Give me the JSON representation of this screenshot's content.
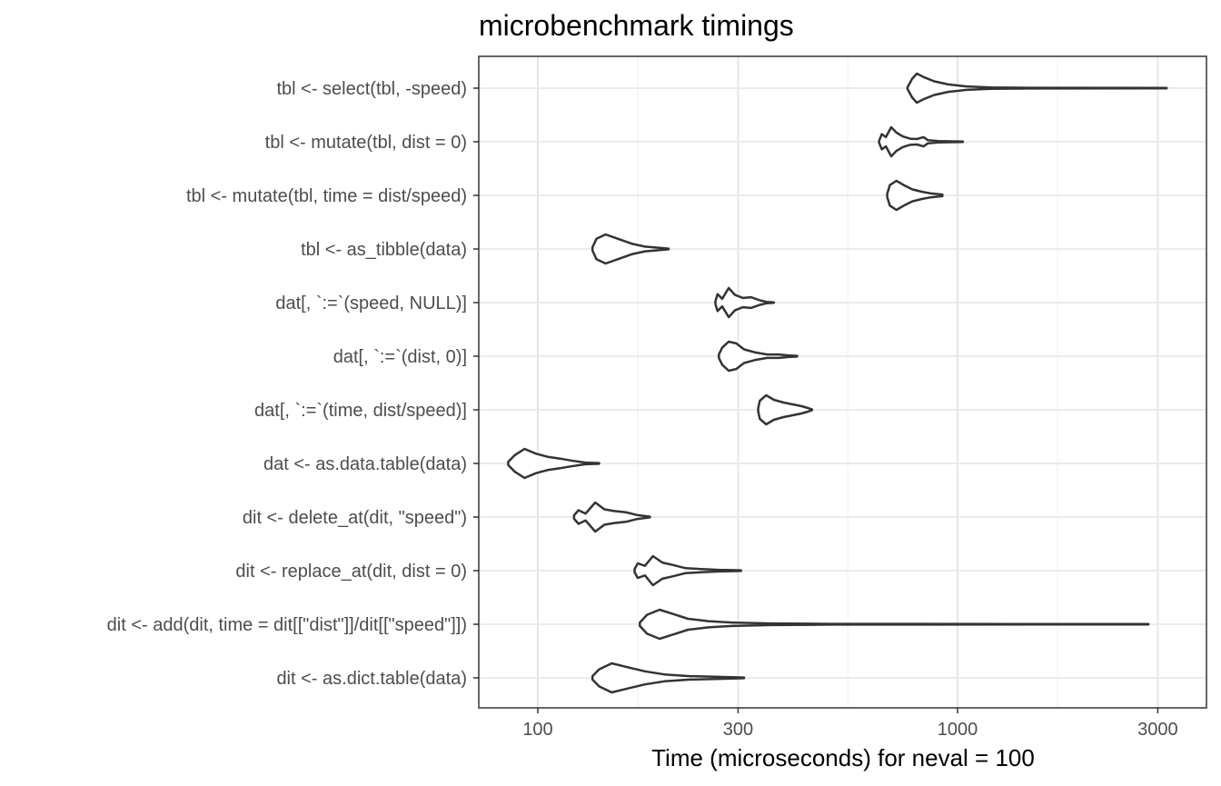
{
  "chart_data": {
    "type": "violin",
    "title": "microbenchmark timings",
    "xlabel": "Time (microseconds) for neval = 100",
    "ylabel": "",
    "x_scale": "log10",
    "xlim": [
      80,
      3300
    ],
    "x_ticks": [
      100,
      300,
      1000,
      3000
    ],
    "x_tick_labels": [
      "100",
      "300",
      "1000",
      "3000"
    ],
    "grid": true,
    "categories": [
      "tbl <- select(tbl, -speed)",
      "tbl <- mutate(tbl, dist = 0)",
      "tbl <- mutate(tbl, time = dist/speed)",
      "tbl <- as_tibble(data)",
      "dat[, `:=`(speed, NULL)]",
      "dat[, `:=`(dist, 0)]",
      "dat[, `:=`(time, dist/speed)]",
      "dat <- as.data.table(data)",
      "dit <- delete_at(dit, \"speed\")",
      "dit <- replace_at(dit, dist = 0)",
      "dit <- add(dit, time = dit[[\"dist\"]]/dit[[\"speed\"]])",
      "dit <- as.dict.table(data)"
    ],
    "violins": [
      {
        "label": "tbl <- select(tbl, -speed)",
        "min": 760,
        "max": 3150,
        "profile": [
          [
            760,
            0.05
          ],
          [
            780,
            0.55
          ],
          [
            800,
            0.85
          ],
          [
            830,
            0.65
          ],
          [
            880,
            0.4
          ],
          [
            950,
            0.22
          ],
          [
            1050,
            0.1
          ],
          [
            1200,
            0.04
          ],
          [
            1500,
            0.02
          ],
          [
            3150,
            0.01
          ]
        ]
      },
      {
        "label": "tbl <- mutate(tbl, dist = 0)",
        "min": 650,
        "max": 1030,
        "profile": [
          [
            650,
            0.05
          ],
          [
            660,
            0.5
          ],
          [
            675,
            0.3
          ],
          [
            695,
            0.95
          ],
          [
            715,
            0.6
          ],
          [
            740,
            0.35
          ],
          [
            770,
            0.2
          ],
          [
            800,
            0.18
          ],
          [
            830,
            0.3
          ],
          [
            850,
            0.1
          ],
          [
            900,
            0.05
          ],
          [
            1030,
            0.02
          ]
        ]
      },
      {
        "label": "tbl <- mutate(tbl, time = dist/speed)",
        "min": 680,
        "max": 920,
        "profile": [
          [
            680,
            0.1
          ],
          [
            690,
            0.6
          ],
          [
            715,
            0.85
          ],
          [
            745,
            0.6
          ],
          [
            780,
            0.35
          ],
          [
            820,
            0.22
          ],
          [
            860,
            0.12
          ],
          [
            920,
            0.05
          ]
        ]
      },
      {
        "label": "tbl <- as_tibble(data)",
        "min": 135,
        "max": 205,
        "profile": [
          [
            135,
            0.1
          ],
          [
            138,
            0.6
          ],
          [
            145,
            0.85
          ],
          [
            155,
            0.6
          ],
          [
            168,
            0.3
          ],
          [
            180,
            0.14
          ],
          [
            192,
            0.08
          ],
          [
            205,
            0.02
          ]
        ]
      },
      {
        "label": "dat[, `:=`(speed, NULL)]",
        "min": 265,
        "max": 365,
        "profile": [
          [
            265,
            0.1
          ],
          [
            268,
            0.55
          ],
          [
            275,
            0.25
          ],
          [
            285,
            0.95
          ],
          [
            295,
            0.5
          ],
          [
            308,
            0.3
          ],
          [
            322,
            0.35
          ],
          [
            338,
            0.15
          ],
          [
            350,
            0.05
          ],
          [
            365,
            0.02
          ]
        ]
      },
      {
        "label": "dat[, `:=`(dist, 0)]",
        "min": 270,
        "max": 415,
        "profile": [
          [
            270,
            0.1
          ],
          [
            275,
            0.5
          ],
          [
            285,
            0.85
          ],
          [
            297,
            0.75
          ],
          [
            310,
            0.4
          ],
          [
            330,
            0.22
          ],
          [
            352,
            0.1
          ],
          [
            375,
            0.1
          ],
          [
            395,
            0.05
          ],
          [
            415,
            0.02
          ]
        ]
      },
      {
        "label": "dat[, `:=`(time, dist/speed)]",
        "min": 335,
        "max": 450,
        "profile": [
          [
            335,
            0.1
          ],
          [
            338,
            0.5
          ],
          [
            350,
            0.8
          ],
          [
            365,
            0.55
          ],
          [
            385,
            0.4
          ],
          [
            405,
            0.3
          ],
          [
            425,
            0.2
          ],
          [
            440,
            0.1
          ],
          [
            450,
            0.02
          ]
        ]
      },
      {
        "label": "dat <- as.data.table(data)",
        "min": 85,
        "max": 140,
        "profile": [
          [
            85,
            0.1
          ],
          [
            88,
            0.5
          ],
          [
            93,
            0.9
          ],
          [
            99,
            0.6
          ],
          [
            106,
            0.4
          ],
          [
            113,
            0.3
          ],
          [
            120,
            0.18
          ],
          [
            130,
            0.05
          ],
          [
            140,
            0.02
          ]
        ]
      },
      {
        "label": "dit <- delete_at(dit, \"speed\")",
        "min": 122,
        "max": 185,
        "profile": [
          [
            122,
            0.1
          ],
          [
            125,
            0.4
          ],
          [
            130,
            0.2
          ],
          [
            137,
            0.85
          ],
          [
            144,
            0.45
          ],
          [
            152,
            0.35
          ],
          [
            162,
            0.28
          ],
          [
            172,
            0.12
          ],
          [
            185,
            0.02
          ]
        ]
      },
      {
        "label": "dit <- replace_at(dit, dist = 0)",
        "min": 170,
        "max": 305,
        "profile": [
          [
            170,
            0.1
          ],
          [
            173,
            0.45
          ],
          [
            180,
            0.3
          ],
          [
            188,
            0.9
          ],
          [
            198,
            0.5
          ],
          [
            210,
            0.35
          ],
          [
            225,
            0.15
          ],
          [
            245,
            0.1
          ],
          [
            270,
            0.05
          ],
          [
            305,
            0.02
          ]
        ]
      },
      {
        "label": "dit <- add(dit, time = dit[[\"dist\"]]/dit[[\"speed\"]])",
        "min": 175,
        "max": 2850,
        "profile": [
          [
            175,
            0.1
          ],
          [
            182,
            0.55
          ],
          [
            195,
            0.85
          ],
          [
            210,
            0.6
          ],
          [
            228,
            0.32
          ],
          [
            255,
            0.18
          ],
          [
            290,
            0.1
          ],
          [
            360,
            0.05
          ],
          [
            500,
            0.02
          ],
          [
            2850,
            0.01
          ]
        ]
      },
      {
        "label": "dit <- as.dict.table(data)",
        "min": 135,
        "max": 310,
        "profile": [
          [
            135,
            0.1
          ],
          [
            140,
            0.5
          ],
          [
            150,
            0.85
          ],
          [
            165,
            0.6
          ],
          [
            180,
            0.38
          ],
          [
            200,
            0.2
          ],
          [
            230,
            0.1
          ],
          [
            270,
            0.06
          ],
          [
            310,
            0.02
          ]
        ]
      }
    ]
  }
}
